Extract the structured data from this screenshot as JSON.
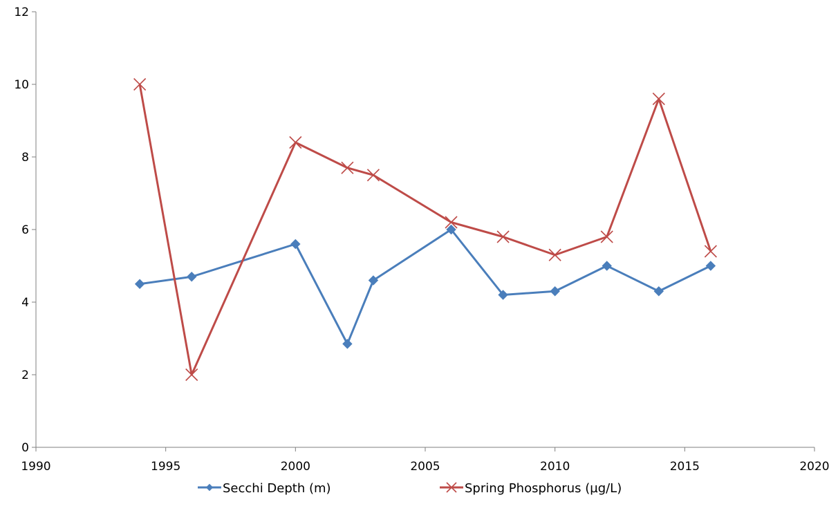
{
  "chart_data": {
    "type": "scatter",
    "title": "",
    "xlabel": "",
    "ylabel": "",
    "xlim": [
      1990,
      2020
    ],
    "ylim": [
      0,
      12
    ],
    "x_ticks": [
      "1990",
      "1995",
      "2000",
      "2005",
      "2010",
      "2015",
      "2020"
    ],
    "y_ticks": [
      "0",
      "2",
      "4",
      "6",
      "8",
      "10",
      "12"
    ],
    "grid": false,
    "legend_position": "bottom",
    "series": [
      {
        "name": "Secchi Depth (m)",
        "color": "#4A7EBB",
        "marker": "diamond",
        "x": [
          1994,
          1996,
          2000,
          2002,
          2003,
          2006,
          2008,
          2010,
          2012,
          2014,
          2016
        ],
        "y": [
          4.5,
          4.7,
          5.6,
          2.85,
          4.6,
          6.0,
          4.2,
          4.3,
          5.0,
          4.3,
          5.0
        ]
      },
      {
        "name": "Spring Phosphorus (µg/L)",
        "color": "#BE4B48",
        "marker": "x",
        "x": [
          1994,
          1996,
          2000,
          2002,
          2003,
          2006,
          2008,
          2010,
          2012,
          2014,
          2016
        ],
        "y": [
          10.0,
          2.0,
          8.4,
          7.7,
          7.5,
          6.2,
          5.8,
          5.3,
          5.8,
          9.6,
          5.4
        ]
      }
    ]
  }
}
